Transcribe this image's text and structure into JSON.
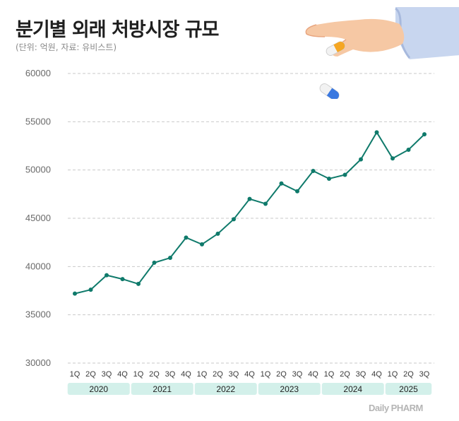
{
  "chart_data": {
    "type": "line",
    "title": "분기별 외래 처방시장 규모",
    "subtitle": "(단위: 억원, 자료: 유비스트)",
    "xlabel": "",
    "ylabel": "",
    "ylim": [
      30000,
      60000
    ],
    "yticks": [
      30000,
      35000,
      40000,
      45000,
      50000,
      55000,
      60000
    ],
    "grid": true,
    "quarters": [
      "1Q",
      "2Q",
      "3Q",
      "4Q",
      "1Q",
      "2Q",
      "3Q",
      "4Q",
      "1Q",
      "2Q",
      "3Q",
      "4Q",
      "1Q",
      "2Q",
      "3Q",
      "4Q",
      "1Q",
      "2Q",
      "3Q",
      "4Q",
      "1Q",
      "2Q",
      "3Q"
    ],
    "years": [
      {
        "label": "2020",
        "quarters": 4
      },
      {
        "label": "2021",
        "quarters": 4
      },
      {
        "label": "2022",
        "quarters": 4
      },
      {
        "label": "2023",
        "quarters": 4
      },
      {
        "label": "2024",
        "quarters": 4
      },
      {
        "label": "2025",
        "quarters": 3
      }
    ],
    "values": [
      37200,
      37600,
      39100,
      38700,
      38200,
      40400,
      40900,
      43000,
      42300,
      43400,
      44900,
      47000,
      46500,
      48600,
      47800,
      49900,
      49100,
      49500,
      51100,
      53900,
      51200,
      52100,
      53700
    ],
    "line_color": "#0f7a6b",
    "band_color": "#d3f0ea"
  },
  "logo_text": "Daily PHARM",
  "illustration": "hand-dropping-capsule-icon",
  "illustration_text": ""
}
